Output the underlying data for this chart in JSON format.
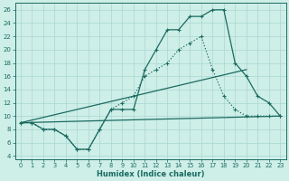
{
  "xlabel": "Humidex (Indice chaleur)",
  "bg_color": "#ceeee8",
  "grid_color": "#a8d8d0",
  "line_color": "#1a6b60",
  "xlim": [
    -0.5,
    23.5
  ],
  "ylim": [
    3.5,
    27
  ],
  "xticks": [
    0,
    1,
    2,
    3,
    4,
    5,
    6,
    7,
    8,
    9,
    10,
    11,
    12,
    13,
    14,
    15,
    16,
    17,
    18,
    19,
    20,
    21,
    22,
    23
  ],
  "yticks": [
    4,
    6,
    8,
    10,
    12,
    14,
    16,
    18,
    20,
    22,
    24,
    26
  ],
  "curve1_x": [
    0,
    1,
    2,
    3,
    4,
    5,
    6,
    7,
    8,
    9,
    10,
    11,
    12,
    13,
    14,
    15,
    16,
    17,
    18,
    19,
    20,
    21,
    22,
    23
  ],
  "curve1_y": [
    9,
    9,
    8,
    8,
    7,
    5,
    5,
    8,
    11,
    11,
    11,
    17,
    20,
    23,
    23,
    25,
    25,
    26,
    26,
    18,
    16,
    13,
    12,
    10
  ],
  "curve2_x": [
    0,
    1,
    2,
    3,
    4,
    5,
    6,
    7,
    8,
    9,
    10,
    11,
    12,
    13,
    14,
    15,
    16,
    17,
    18,
    19,
    20,
    21,
    22,
    23
  ],
  "curve2_y": [
    9,
    9,
    8,
    8,
    7,
    5,
    5,
    8,
    11,
    12,
    13,
    16,
    17,
    18,
    20,
    21,
    22,
    17,
    13,
    11,
    10,
    10,
    10,
    10
  ],
  "line3_x": [
    0,
    23
  ],
  "line3_y": [
    9,
    10
  ],
  "line4_x": [
    0,
    20
  ],
  "line4_y": [
    9,
    17
  ]
}
